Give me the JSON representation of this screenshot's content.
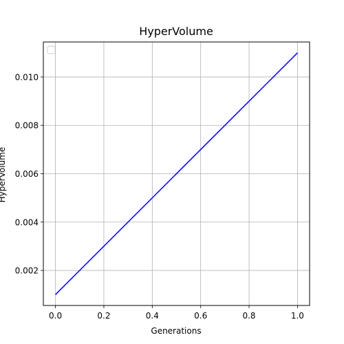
{
  "chart_data": {
    "type": "line",
    "title": "HyperVolume",
    "xlabel": "Generations",
    "ylabel": "HyperVolume",
    "xlim": [
      -0.05,
      1.05
    ],
    "ylim": [
      0.00055,
      0.01145
    ],
    "xticks": [
      0.0,
      0.2,
      0.4,
      0.6,
      0.8,
      1.0
    ],
    "xtick_labels": [
      "0.0",
      "0.2",
      "0.4",
      "0.6",
      "0.8",
      "1.0"
    ],
    "yticks": [
      0.002,
      0.004,
      0.006,
      0.008,
      0.01
    ],
    "ytick_labels": [
      "0.002",
      "0.004",
      "0.006",
      "0.008",
      "0.010"
    ],
    "grid": true,
    "legend": {
      "placement": "top-left",
      "entries": []
    },
    "series": [
      {
        "color": "#0000ff",
        "x": [
          0.0,
          1.0
        ],
        "y": [
          0.001,
          0.011
        ]
      }
    ]
  }
}
